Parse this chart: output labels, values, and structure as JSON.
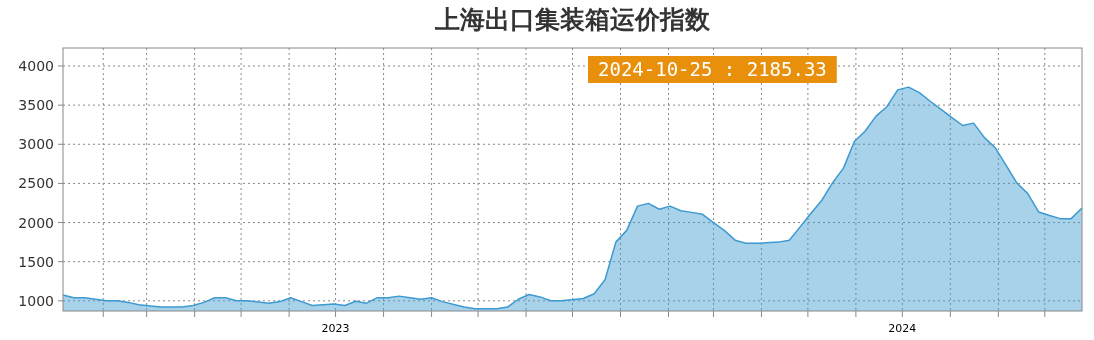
{
  "chart_data": {
    "type": "area",
    "title": "上海出口集装箱运价指数",
    "annotations": [
      "2024-10-25 : 2185.33"
    ],
    "series": [
      {
        "color": "#3d9ad1",
        "x": [
          "2023-01-06",
          "2023-01-13",
          "2023-01-20",
          "2023-02-03",
          "2023-02-10",
          "2023-02-17",
          "2023-02-24",
          "2023-03-10",
          "2023-03-24",
          "2023-03-31",
          "2023-04-07",
          "2023-04-14",
          "2023-04-21",
          "2023-04-28",
          "2023-05-05",
          "2023-05-19",
          "2023-05-26",
          "2023-06-02",
          "2023-06-09",
          "2023-06-16",
          "2023-06-23",
          "2023-06-30",
          "2023-07-07",
          "2023-07-14",
          "2023-07-21",
          "2023-07-28",
          "2023-08-04",
          "2023-08-11",
          "2023-08-18",
          "2023-08-25",
          "2023-09-01",
          "2023-09-08",
          "2023-09-22",
          "2023-09-29",
          "2023-10-13",
          "2023-10-20",
          "2023-10-27",
          "2023-11-03",
          "2023-11-10",
          "2023-11-17",
          "2023-11-24",
          "2023-12-08",
          "2023-12-15",
          "2023-12-22",
          "2023-12-29",
          "2024-01-05",
          "2024-01-12",
          "2024-01-19",
          "2024-01-26",
          "2024-02-02",
          "2024-02-09",
          "2024-02-16",
          "2024-02-23",
          "2024-03-01",
          "2024-03-08",
          "2024-03-15",
          "2024-03-22",
          "2024-03-29",
          "2024-04-12",
          "2024-04-19",
          "2024-04-26",
          "2024-05-03",
          "2024-05-10",
          "2024-05-17",
          "2024-05-24",
          "2024-05-31",
          "2024-06-07",
          "2024-06-14",
          "2024-06-21",
          "2024-06-28",
          "2024-07-05",
          "2024-07-12",
          "2024-07-19",
          "2024-07-26",
          "2024-08-02",
          "2024-08-09",
          "2024-08-16",
          "2024-08-23",
          "2024-08-30",
          "2024-09-06",
          "2024-09-13",
          "2024-09-20",
          "2024-09-27",
          "2024-10-04",
          "2024-10-11",
          "2024-10-18",
          "2024-10-25"
        ],
        "values": [
          1075,
          1040,
          1040,
          1000,
          1000,
          980,
          950,
          920,
          920,
          940,
          980,
          1040,
          1040,
          1000,
          1000,
          970,
          990,
          1040,
          990,
          940,
          950,
          960,
          940,
          995,
          970,
          1040,
          1040,
          1060,
          1040,
          1020,
          1040,
          990,
          920,
          900,
          900,
          920,
          1020,
          1080,
          1050,
          1000,
          1000,
          1030,
          1090,
          1270,
          1750,
          1900,
          2210,
          2245,
          2170,
          2210,
          2150,
          2130,
          2105,
          2000,
          1900,
          1775,
          1735,
          1735,
          1750,
          1775,
          1945,
          2120,
          2285,
          2510,
          2695,
          3035,
          3170,
          3360,
          3480,
          3695,
          3730,
          3660,
          3550,
          3445,
          3340,
          3240,
          3270,
          3085,
          2955,
          2730,
          2505,
          2370,
          2135,
          2090,
          2050,
          2050,
          2185.33
        ]
      }
    ],
    "xlim": [
      "2023-01-06",
      "2024-10-25"
    ],
    "xticks": [
      {
        "value": "2023-02-01",
        "label": null
      },
      {
        "value": "2023-03-01",
        "label": null
      },
      {
        "value": "2023-04-01",
        "label": null
      },
      {
        "value": "2023-05-01",
        "label": null
      },
      {
        "value": "2023-06-01",
        "label": null
      },
      {
        "value": "2023-07-01",
        "label": "2023"
      },
      {
        "value": "2023-08-01",
        "label": null
      },
      {
        "value": "2023-09-01",
        "label": null
      },
      {
        "value": "2023-10-01",
        "label": null
      },
      {
        "value": "2023-11-01",
        "label": null
      },
      {
        "value": "2023-12-01",
        "label": null
      },
      {
        "value": "2024-01-01",
        "label": null
      },
      {
        "value": "2024-02-01",
        "label": null
      },
      {
        "value": "2024-03-01",
        "label": null
      },
      {
        "value": "2024-04-01",
        "label": null
      },
      {
        "value": "2024-05-01",
        "label": null
      },
      {
        "value": "2024-06-01",
        "label": null
      },
      {
        "value": "2024-07-01",
        "label": "2024"
      },
      {
        "value": "2024-08-01",
        "label": null
      },
      {
        "value": "2024-09-01",
        "label": null
      },
      {
        "value": "2024-10-01",
        "label": null
      }
    ],
    "ylim": [
      870,
      4230
    ],
    "yticks": [
      1000,
      1500,
      2000,
      2500,
      3000,
      3500,
      4000
    ],
    "grid": true
  }
}
